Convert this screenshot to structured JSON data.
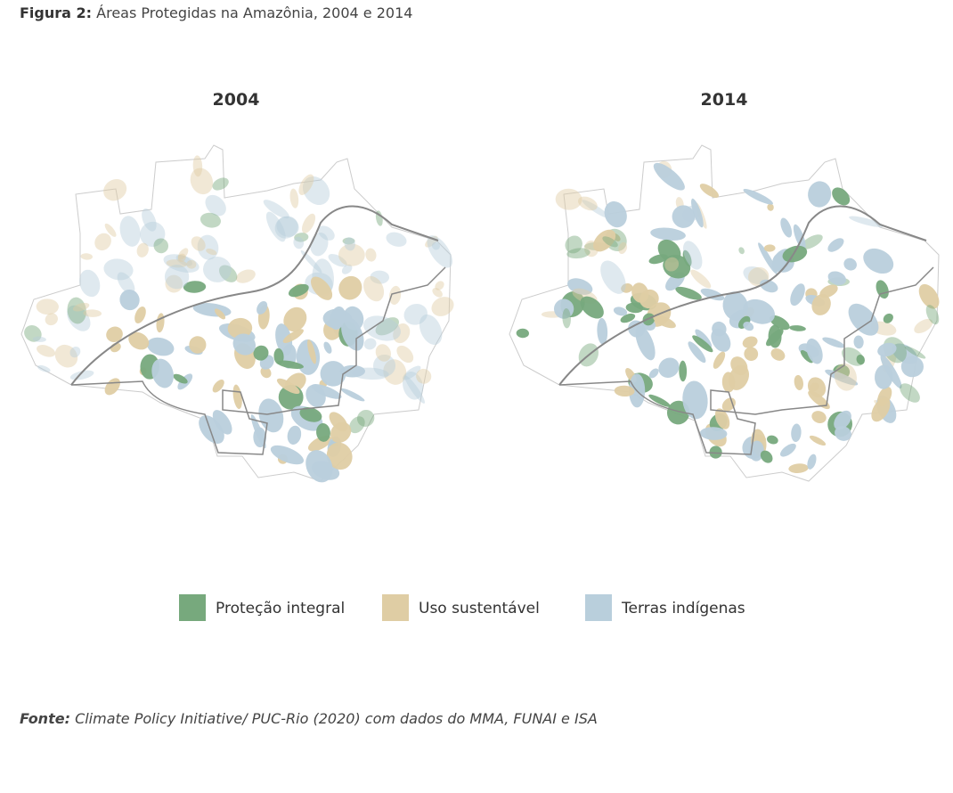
{
  "header": {
    "label": "Figura 2:",
    "title": "Áreas Protegidas na Amazônia, 2004 e 2014"
  },
  "maps": [
    {
      "title": "2004"
    },
    {
      "title": "2014"
    }
  ],
  "legend": [
    {
      "name": "Proteção integral",
      "color": "#77a97d"
    },
    {
      "name": "Uso sustentável",
      "color": "#dfcda4"
    },
    {
      "name": "Terras indígenas",
      "color": "#b9cfdc"
    }
  ],
  "source": {
    "label": "Fonte:",
    "text": "Climate Policy Initiative/ PUC-Rio (2020) com dados do MMA, FUNAI e  ISA"
  }
}
